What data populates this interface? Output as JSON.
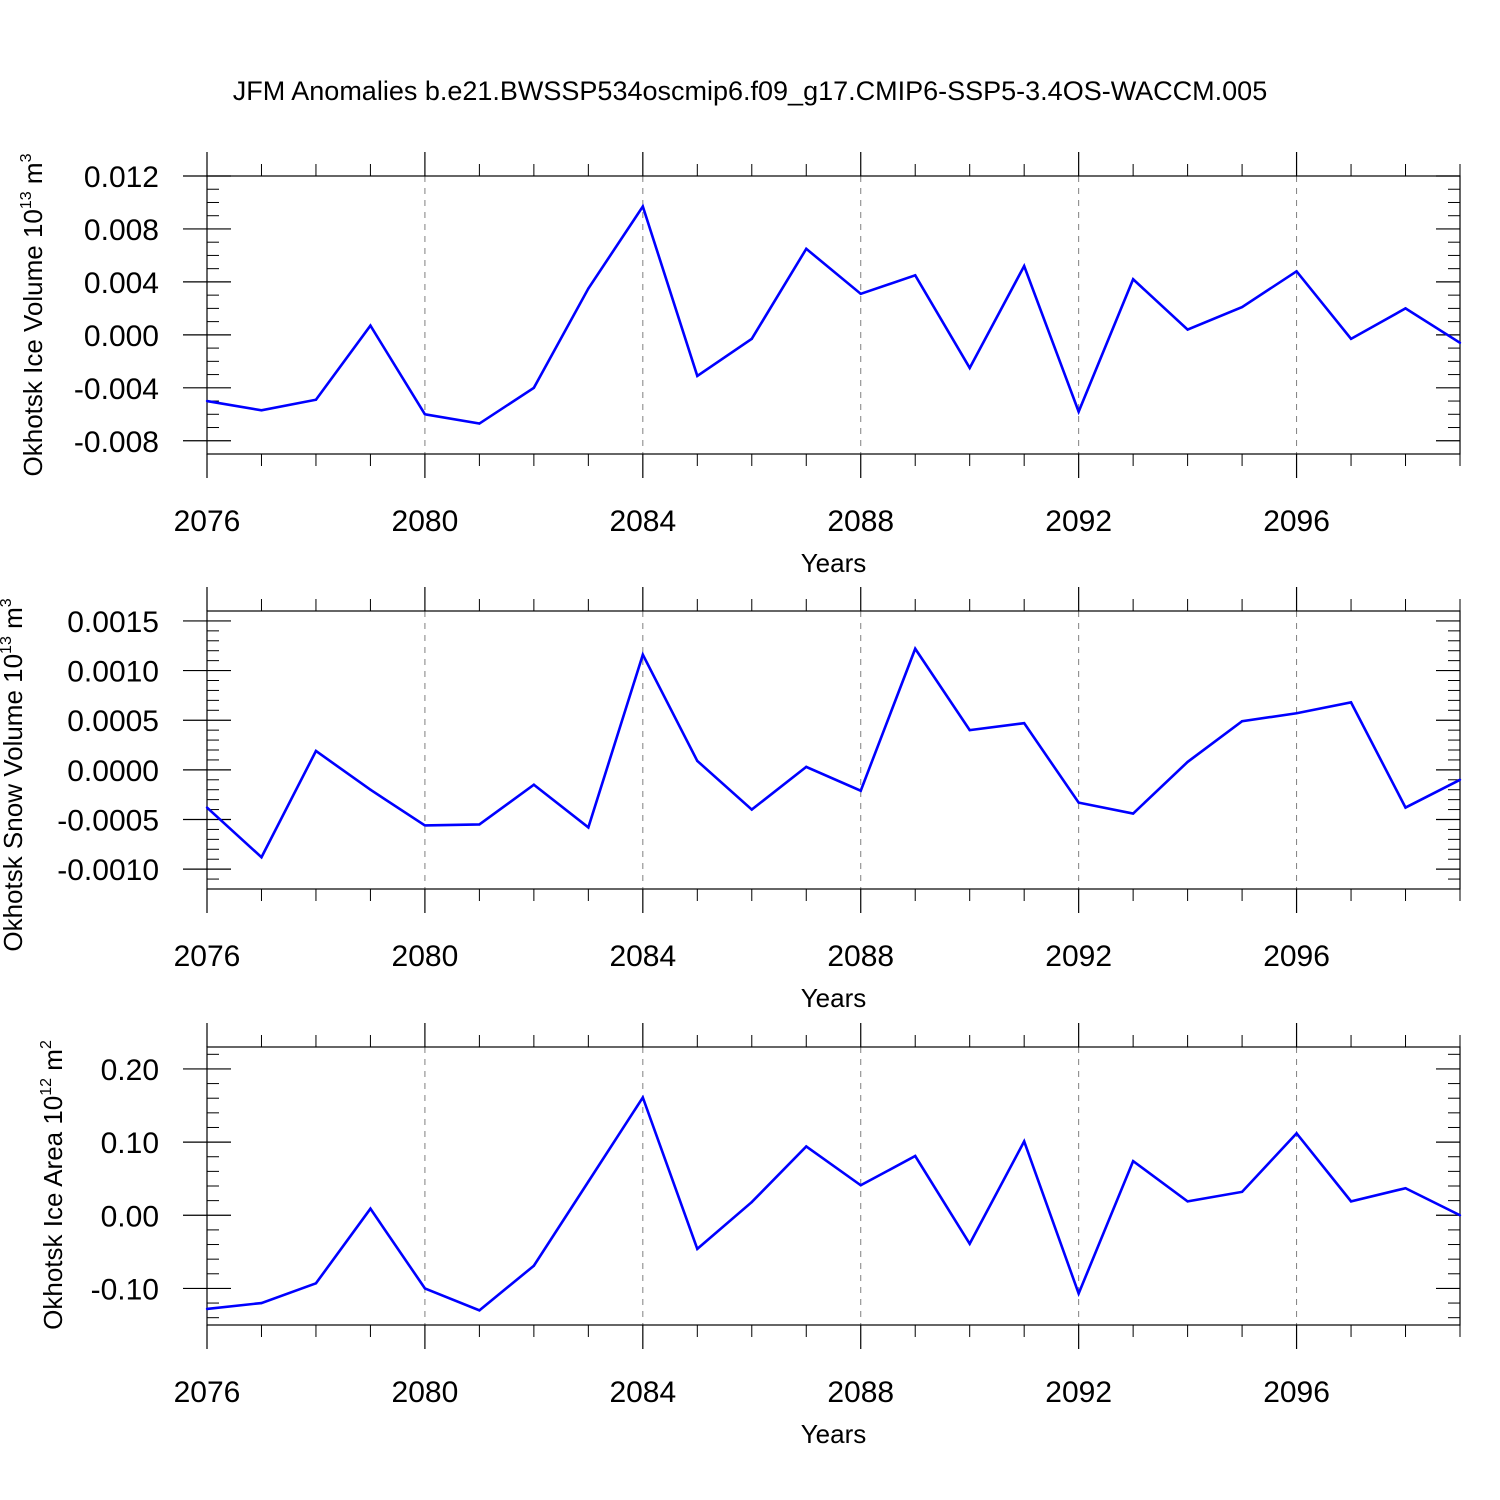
{
  "title": "JFM Anomalies b.e21.BWSSP534oscmip6.f09_g17.CMIP6-SSP5-3.4OS-WACCM.005",
  "colors": {
    "line": "#0000ff",
    "axis": "#000000",
    "grid": "#808080"
  },
  "chart_data": [
    {
      "type": "line",
      "xlabel": "Years",
      "ylabel": {
        "text": "Okhotsk Ice Volume 10",
        "exp": "13",
        "unit": " m",
        "unit_exp": "3"
      },
      "xlim": [
        2076,
        2099
      ],
      "ylim": [
        -0.009,
        0.012
      ],
      "x_ticks": [
        2076,
        2080,
        2084,
        2088,
        2092,
        2096
      ],
      "x_tick_labels": [
        "2076",
        "2080",
        "2084",
        "2088",
        "2092",
        "2096"
      ],
      "y_ticks": [
        -0.008,
        -0.004,
        0.0,
        0.004,
        0.008,
        0.012
      ],
      "y_tick_labels": [
        "-0.008",
        "-0.004",
        "0.000",
        "0.004",
        "0.008",
        "0.012"
      ],
      "y_minor_step": 0.001,
      "grid_x": true,
      "x": [
        2076,
        2077,
        2078,
        2079,
        2080,
        2081,
        2082,
        2083,
        2084,
        2085,
        2086,
        2087,
        2088,
        2089,
        2090,
        2091,
        2092,
        2093,
        2094,
        2095,
        2096,
        2097,
        2098,
        2099
      ],
      "series": [
        {
          "values": [
            -0.005,
            -0.0057,
            -0.0049,
            0.0007,
            -0.006,
            -0.0067,
            -0.004,
            0.0035,
            0.0097,
            -0.0031,
            -0.0003,
            0.0065,
            0.0031,
            0.0045,
            -0.0025,
            0.0052,
            -0.0058,
            0.0042,
            0.0004,
            0.0021,
            0.0048,
            -0.0003,
            0.002,
            -0.0006
          ]
        }
      ]
    },
    {
      "type": "line",
      "xlabel": "Years",
      "ylabel": {
        "text": "Okhotsk Snow Volume 10",
        "exp": "13",
        "unit": " m",
        "unit_exp": "3"
      },
      "xlim": [
        2076,
        2099
      ],
      "ylim": [
        -0.0012,
        0.0016
      ],
      "x_ticks": [
        2076,
        2080,
        2084,
        2088,
        2092,
        2096
      ],
      "x_tick_labels": [
        "2076",
        "2080",
        "2084",
        "2088",
        "2092",
        "2096"
      ],
      "y_ticks": [
        -0.001,
        -0.0005,
        0.0,
        0.0005,
        0.001,
        0.0015
      ],
      "y_tick_labels": [
        "-0.0010",
        "-0.0005",
        "0.0000",
        "0.0005",
        "0.0010",
        "0.0015"
      ],
      "y_minor_step": 0.0001,
      "grid_x": true,
      "x": [
        2076,
        2077,
        2078,
        2079,
        2080,
        2081,
        2082,
        2083,
        2084,
        2085,
        2086,
        2087,
        2088,
        2089,
        2090,
        2091,
        2092,
        2093,
        2094,
        2095,
        2096,
        2097,
        2098,
        2099
      ],
      "series": [
        {
          "values": [
            -0.00038,
            -0.00088,
            0.00019,
            -0.0002,
            -0.00056,
            -0.00055,
            -0.00015,
            -0.00058,
            0.00116,
            9e-05,
            -0.0004,
            3e-05,
            -0.00021,
            0.00122,
            0.0004,
            0.00047,
            -0.00033,
            -0.00044,
            8e-05,
            0.00049,
            0.00057,
            0.00068,
            -0.00038,
            -0.0001
          ]
        }
      ]
    },
    {
      "type": "line",
      "xlabel": "Years",
      "ylabel": {
        "text": "Okhotsk Ice Area 10",
        "exp": "12",
        "unit": " m",
        "unit_exp": "2"
      },
      "xlim": [
        2076,
        2099
      ],
      "ylim": [
        -0.15,
        0.23
      ],
      "x_ticks": [
        2076,
        2080,
        2084,
        2088,
        2092,
        2096
      ],
      "x_tick_labels": [
        "2076",
        "2080",
        "2084",
        "2088",
        "2092",
        "2096"
      ],
      "y_ticks": [
        -0.1,
        0.0,
        0.1,
        0.2
      ],
      "y_tick_labels": [
        "-0.10",
        "0.00",
        "0.10",
        "0.20"
      ],
      "y_minor_step": 0.02,
      "grid_x": true,
      "x": [
        2076,
        2077,
        2078,
        2079,
        2080,
        2081,
        2082,
        2083,
        2084,
        2085,
        2086,
        2087,
        2088,
        2089,
        2090,
        2091,
        2092,
        2093,
        2094,
        2095,
        2096,
        2097,
        2098,
        2099
      ],
      "series": [
        {
          "values": [
            -0.128,
            -0.12,
            -0.093,
            0.009,
            -0.1,
            -0.13,
            -0.069,
            0.046,
            0.161,
            -0.046,
            0.018,
            0.094,
            0.041,
            0.081,
            -0.039,
            0.101,
            -0.107,
            0.074,
            0.019,
            0.032,
            0.112,
            0.019,
            0.037,
            0.0
          ]
        }
      ]
    }
  ]
}
